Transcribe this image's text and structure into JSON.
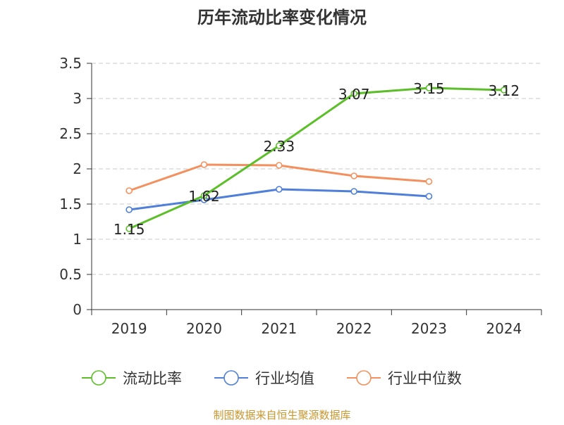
{
  "chart_data": {
    "type": "line",
    "title": "历年流动比率变化情况",
    "categories": [
      "2019",
      "2020",
      "2021",
      "2022",
      "2023",
      "2024"
    ],
    "ylim": [
      0,
      3.5
    ],
    "y_ticks": [
      "0",
      "0.5",
      "1",
      "1.5",
      "2",
      "2.5",
      "3",
      "3.5"
    ],
    "grid": true,
    "legend_position": "bottom",
    "series": [
      {
        "name": "流动比率",
        "color": "#5cbf2a",
        "values": [
          1.15,
          1.62,
          2.33,
          3.07,
          3.15,
          3.12
        ],
        "labels": [
          "1.15",
          "1.62",
          "2.33",
          "3.07",
          "3.15",
          "3.12"
        ]
      },
      {
        "name": "行业均值",
        "color": "#4f7fd9",
        "values": [
          1.42,
          1.56,
          1.71,
          1.68,
          1.61,
          null
        ]
      },
      {
        "name": "行业中位数",
        "color": "#f4905e",
        "values": [
          1.69,
          2.06,
          2.05,
          1.9,
          1.82,
          null
        ]
      }
    ],
    "source_note": "制图数据来自恒生聚源数据库",
    "source_color": "#c8962e"
  }
}
